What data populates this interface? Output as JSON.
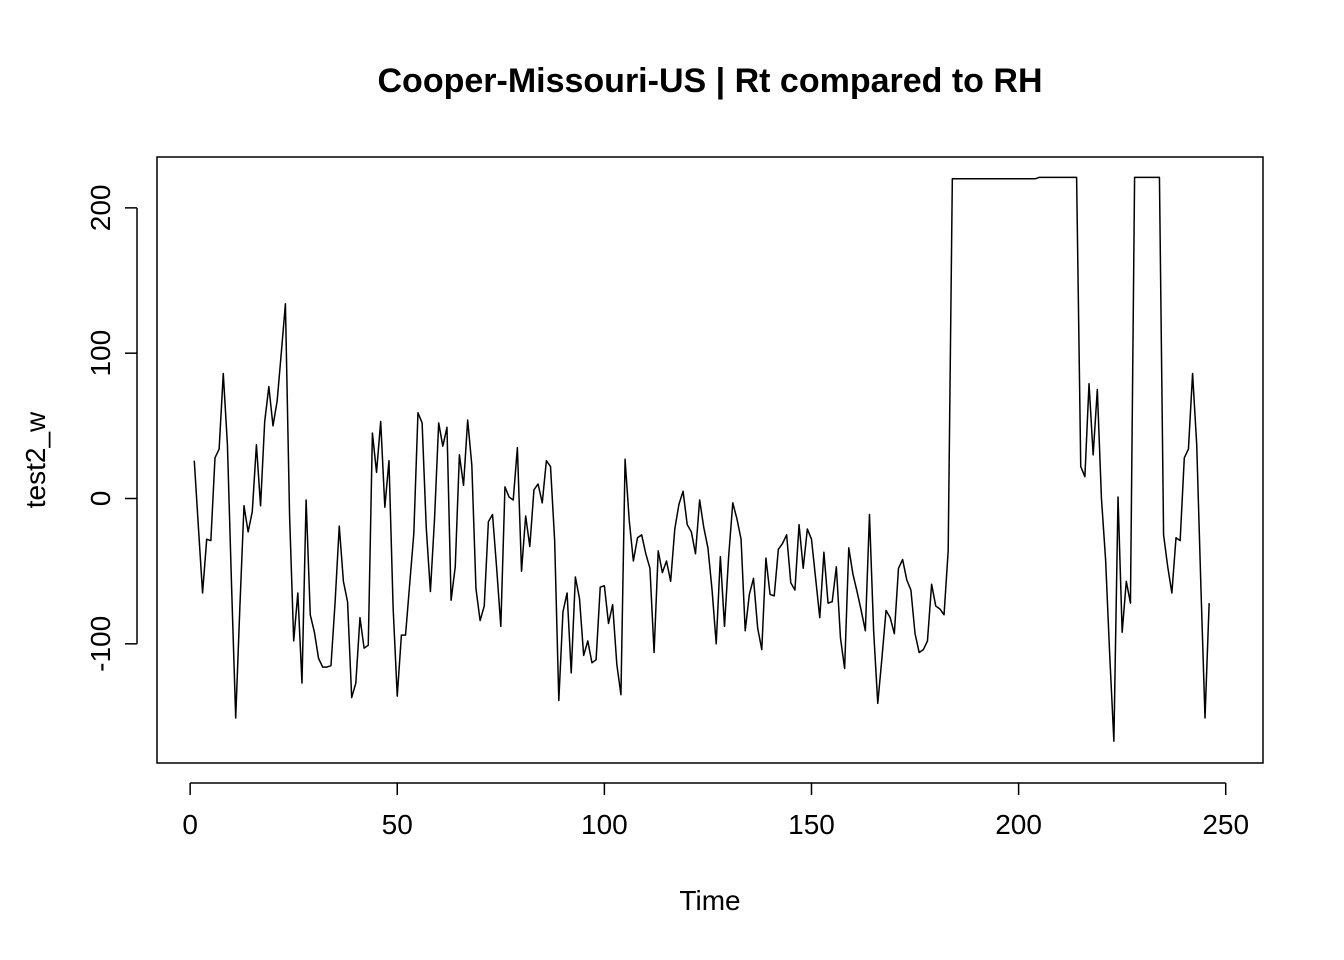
{
  "chart_data": {
    "type": "line",
    "title": "Cooper-Missouri-US | Rt compared to RH",
    "xlabel": "Time",
    "ylabel": "test2_w",
    "xlim": [
      -8,
      259
    ],
    "ylim": [
      -182,
      235
    ],
    "x_ticks": [
      0,
      50,
      100,
      150,
      200,
      250
    ],
    "y_ticks": [
      -100,
      0,
      100,
      200
    ],
    "x_tick_labels": [
      "0",
      "50",
      "100",
      "150",
      "200",
      "250"
    ],
    "y_tick_labels": [
      "-100",
      "0",
      "100",
      "200"
    ],
    "grid": false,
    "legend": "none",
    "line_color": "#000000",
    "series": [
      {
        "x_start": 1,
        "values": [
          26,
          -20,
          -65,
          -28,
          -29,
          28,
          34,
          86,
          37,
          -60,
          -151,
          -75,
          -5,
          -23,
          -9,
          37,
          -5,
          53,
          77,
          50,
          67,
          100,
          134,
          -11,
          -98,
          -65,
          -127,
          -1,
          -80,
          -92,
          -110,
          -116,
          -116,
          -115,
          -71,
          -19,
          -57,
          -71,
          -137,
          -127,
          -82,
          -103,
          -101,
          45,
          18,
          53,
          -6,
          26,
          -75,
          -136,
          -94,
          -94,
          -59,
          -24,
          59,
          52,
          -20,
          -64,
          -14,
          52,
          36,
          49,
          -70,
          -47,
          30,
          9,
          54,
          23,
          -62,
          -84,
          -74,
          -16,
          -11,
          -48,
          -88,
          8,
          1,
          -1,
          35,
          -50,
          -12,
          -33,
          6,
          10,
          -3,
          26,
          22,
          -29,
          -139,
          -78,
          -65,
          -120,
          -54,
          -69,
          -108,
          -98,
          -113,
          -111,
          -61,
          -60,
          -86,
          -73,
          -114,
          -135,
          27,
          -15,
          -43,
          -27,
          -25,
          -38,
          -48,
          -106,
          -36,
          -51,
          -43,
          -57,
          -21,
          -4,
          5,
          -18,
          -23,
          -38,
          -1,
          -20,
          -34,
          -63,
          -100,
          -40,
          -88,
          -40,
          -3,
          -14,
          -28,
          -91,
          -66,
          -55,
          -89,
          -104,
          -41,
          -66,
          -67,
          -35,
          -31,
          -25,
          -58,
          -63,
          -18,
          -48,
          -21,
          -28,
          -55,
          -82,
          -37,
          -72,
          -71,
          -47,
          -96,
          -117,
          -34,
          -52,
          -64,
          -77,
          -91,
          -11,
          -91,
          -141,
          -110,
          -77,
          -82,
          -93,
          -48,
          -42,
          -56,
          -63,
          -93,
          -106,
          -104,
          -98,
          -59,
          -74,
          -76,
          -80,
          -36,
          220,
          220,
          220,
          220,
          220,
          220,
          220,
          220,
          220,
          220,
          220,
          220,
          220,
          220,
          220,
          220,
          220,
          220,
          220,
          220,
          220,
          221,
          221,
          221,
          221,
          221,
          221,
          221,
          221,
          221,
          221,
          22,
          15,
          79,
          30,
          75,
          0,
          -42,
          -108,
          -167,
          1,
          -92,
          -57,
          -72,
          221,
          221,
          221,
          221,
          221,
          221,
          221,
          -25,
          -47,
          -65,
          -27,
          -29,
          28,
          34,
          86,
          37,
          -60,
          -151,
          -72
        ]
      }
    ]
  }
}
